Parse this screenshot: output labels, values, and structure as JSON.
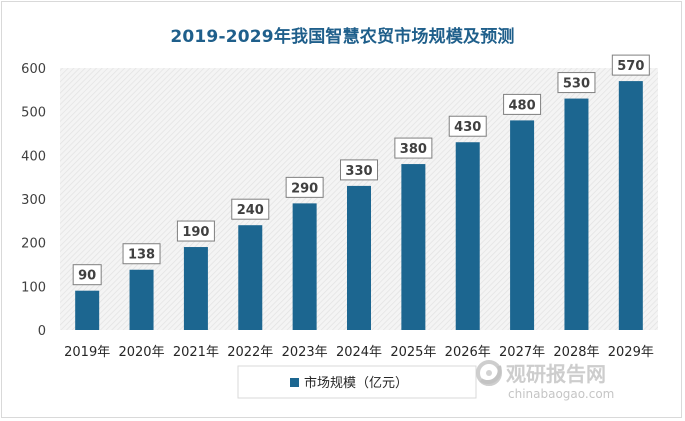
{
  "chart_data": {
    "type": "bar",
    "title": "2019-2029年我国智慧农贸市场规模及预测",
    "categories": [
      "2019年",
      "2020年",
      "2021年",
      "2022年",
      "2023年",
      "2024年",
      "2025年",
      "2026年",
      "2027年",
      "2028年",
      "2029年"
    ],
    "series": [
      {
        "name": "市场规模（亿元）",
        "values": [
          90,
          138,
          190,
          240,
          290,
          330,
          380,
          430,
          480,
          530,
          570
        ]
      }
    ],
    "ylim": [
      0,
      600
    ],
    "yticks": [
      0,
      100,
      200,
      300,
      400,
      500,
      600
    ],
    "grid": false,
    "legend": "bottom",
    "colors": {
      "bar": "#1c6690",
      "title": "#1f5f8b",
      "label_border": "#7f7f7f"
    }
  },
  "watermark": {
    "name": "观研报告网",
    "url": "chinabaogao.com"
  }
}
